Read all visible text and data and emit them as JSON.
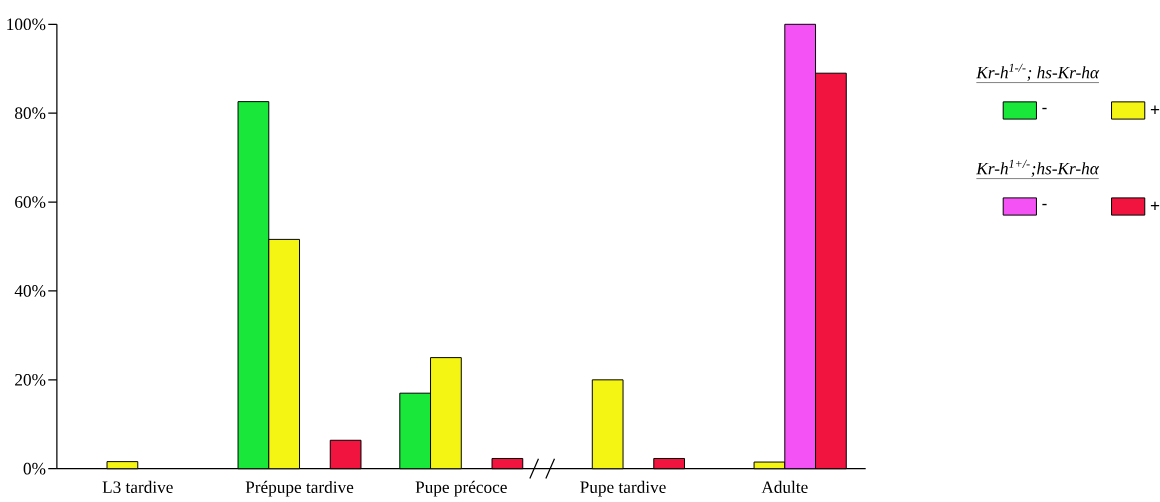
{
  "chart_data": {
    "type": "bar",
    "categories": [
      "L3 tardive",
      "Prépupe tardive",
      "Pupe précoce",
      "Pupe tardive",
      "Adulte"
    ],
    "series": [
      {
        "name": "-",
        "color": "#19e83a",
        "values": [
          null,
          82.6,
          17,
          null,
          null
        ]
      },
      {
        "name": "+",
        "color": "#f5f514",
        "values": [
          1.6,
          51.6,
          25,
          20,
          1.5
        ]
      },
      {
        "name": "-",
        "color": "#f552f5",
        "values": [
          null,
          null,
          null,
          null,
          100
        ]
      },
      {
        "name": "+",
        "color": "#f0143f",
        "values": [
          null,
          6.4,
          2.3,
          2.3,
          89
        ]
      }
    ],
    "ylim": [
      0,
      100
    ],
    "yticks": [
      {
        "value": 0,
        "label": "0%"
      },
      {
        "value": 20,
        "label": "20%"
      },
      {
        "value": 40,
        "label": "40%"
      },
      {
        "value": 60,
        "label": "60%"
      },
      {
        "value": 80,
        "label": "80%"
      },
      {
        "value": 100,
        "label": "100%"
      }
    ],
    "annotations": [
      "Kr-h$^{1-/-}$; hs-Kr-hα",
      "Kr-h$^{1+/-}$;hs-Kr-hα"
    ],
    "legend": "right",
    "grid": false
  }
}
